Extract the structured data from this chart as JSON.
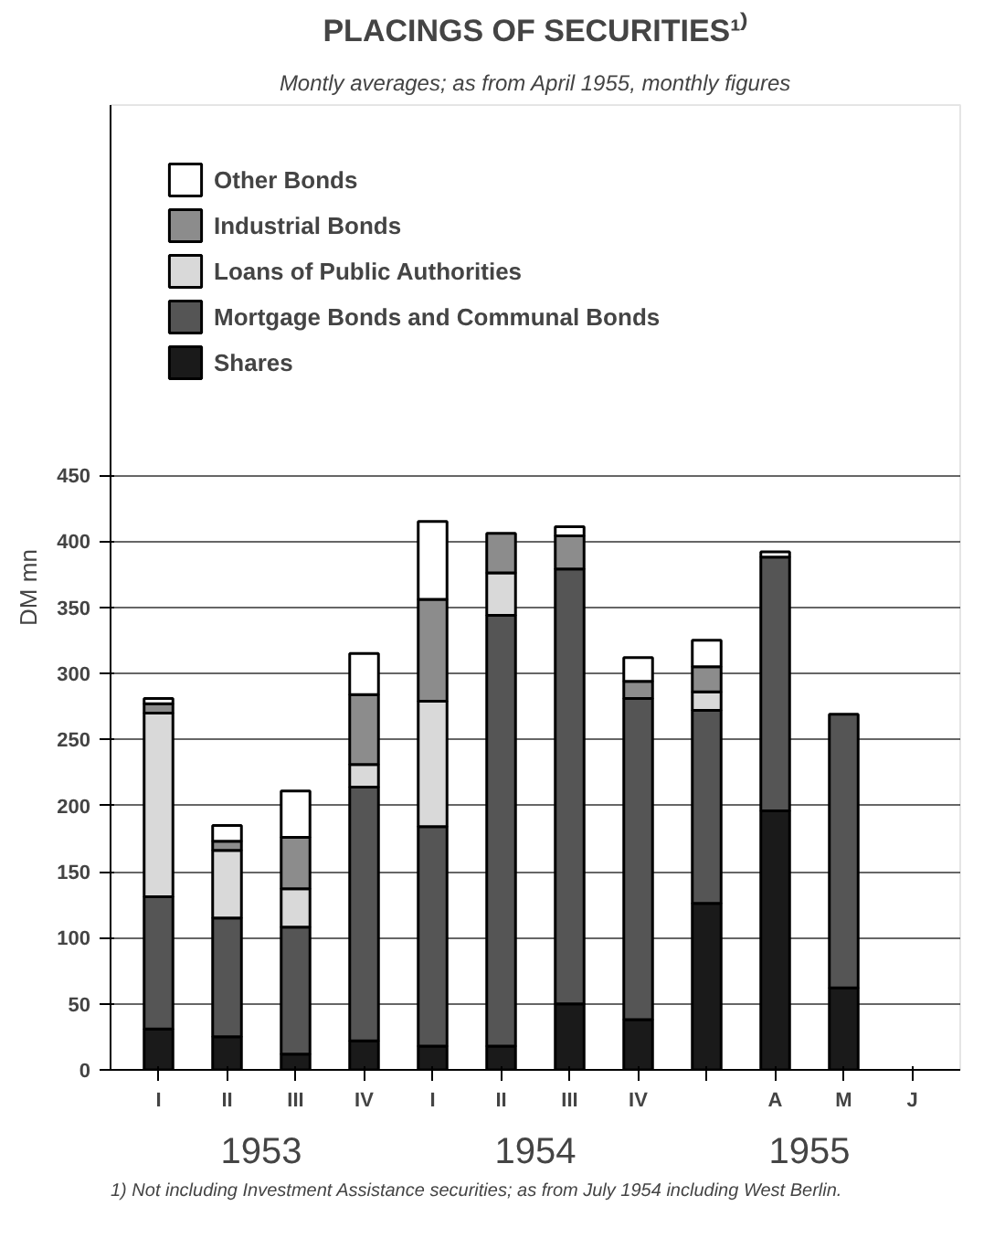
{
  "chart_data": {
    "type": "bar",
    "stacked": true,
    "title": "PLACINGS OF SECURITIES¹⁾",
    "subtitle": "Montly averages; as from April 1955, monthly figures",
    "ylabel": "DM mn",
    "categories": [
      "I",
      "II",
      "III",
      "IV",
      "I",
      "II",
      "III",
      "IV",
      null,
      "A",
      "M",
      "J"
    ],
    "series": [
      {
        "name": "Shares",
        "color": "#1a1a1a",
        "values": [
          31,
          25,
          12,
          22,
          18,
          18,
          50,
          38,
          126,
          196,
          62,
          null
        ]
      },
      {
        "name": "Mortgage Bonds and Communal Bonds",
        "color": "#555555",
        "values": [
          100,
          90,
          96,
          192,
          166,
          326,
          329,
          243,
          146,
          192,
          207,
          null
        ]
      },
      {
        "name": "Loans of Public Authorities",
        "color": "#d9d9d9",
        "values": [
          139,
          51,
          29,
          17,
          95,
          32,
          null,
          null,
          14,
          null,
          null,
          null
        ]
      },
      {
        "name": "Industrial Bonds",
        "color": "#8c8c8c",
        "values": [
          7,
          7,
          39,
          53,
          77,
          30,
          25,
          13,
          19,
          null,
          null,
          null
        ]
      },
      {
        "name": "Other Bonds",
        "color": "#ffffff",
        "values": [
          4,
          12,
          35,
          31,
          59,
          null,
          7,
          18,
          20,
          4,
          null,
          null
        ]
      }
    ],
    "ylim": [
      0,
      730
    ],
    "yticks": [
      0,
      50,
      100,
      150,
      200,
      250,
      300,
      350,
      400,
      450
    ],
    "grid": "y",
    "legend": "top left",
    "annotations": [
      "1953",
      "1954",
      "1955",
      "1) Not including Investment Assistance securities; as from July 1954 including West Berlin."
    ]
  }
}
